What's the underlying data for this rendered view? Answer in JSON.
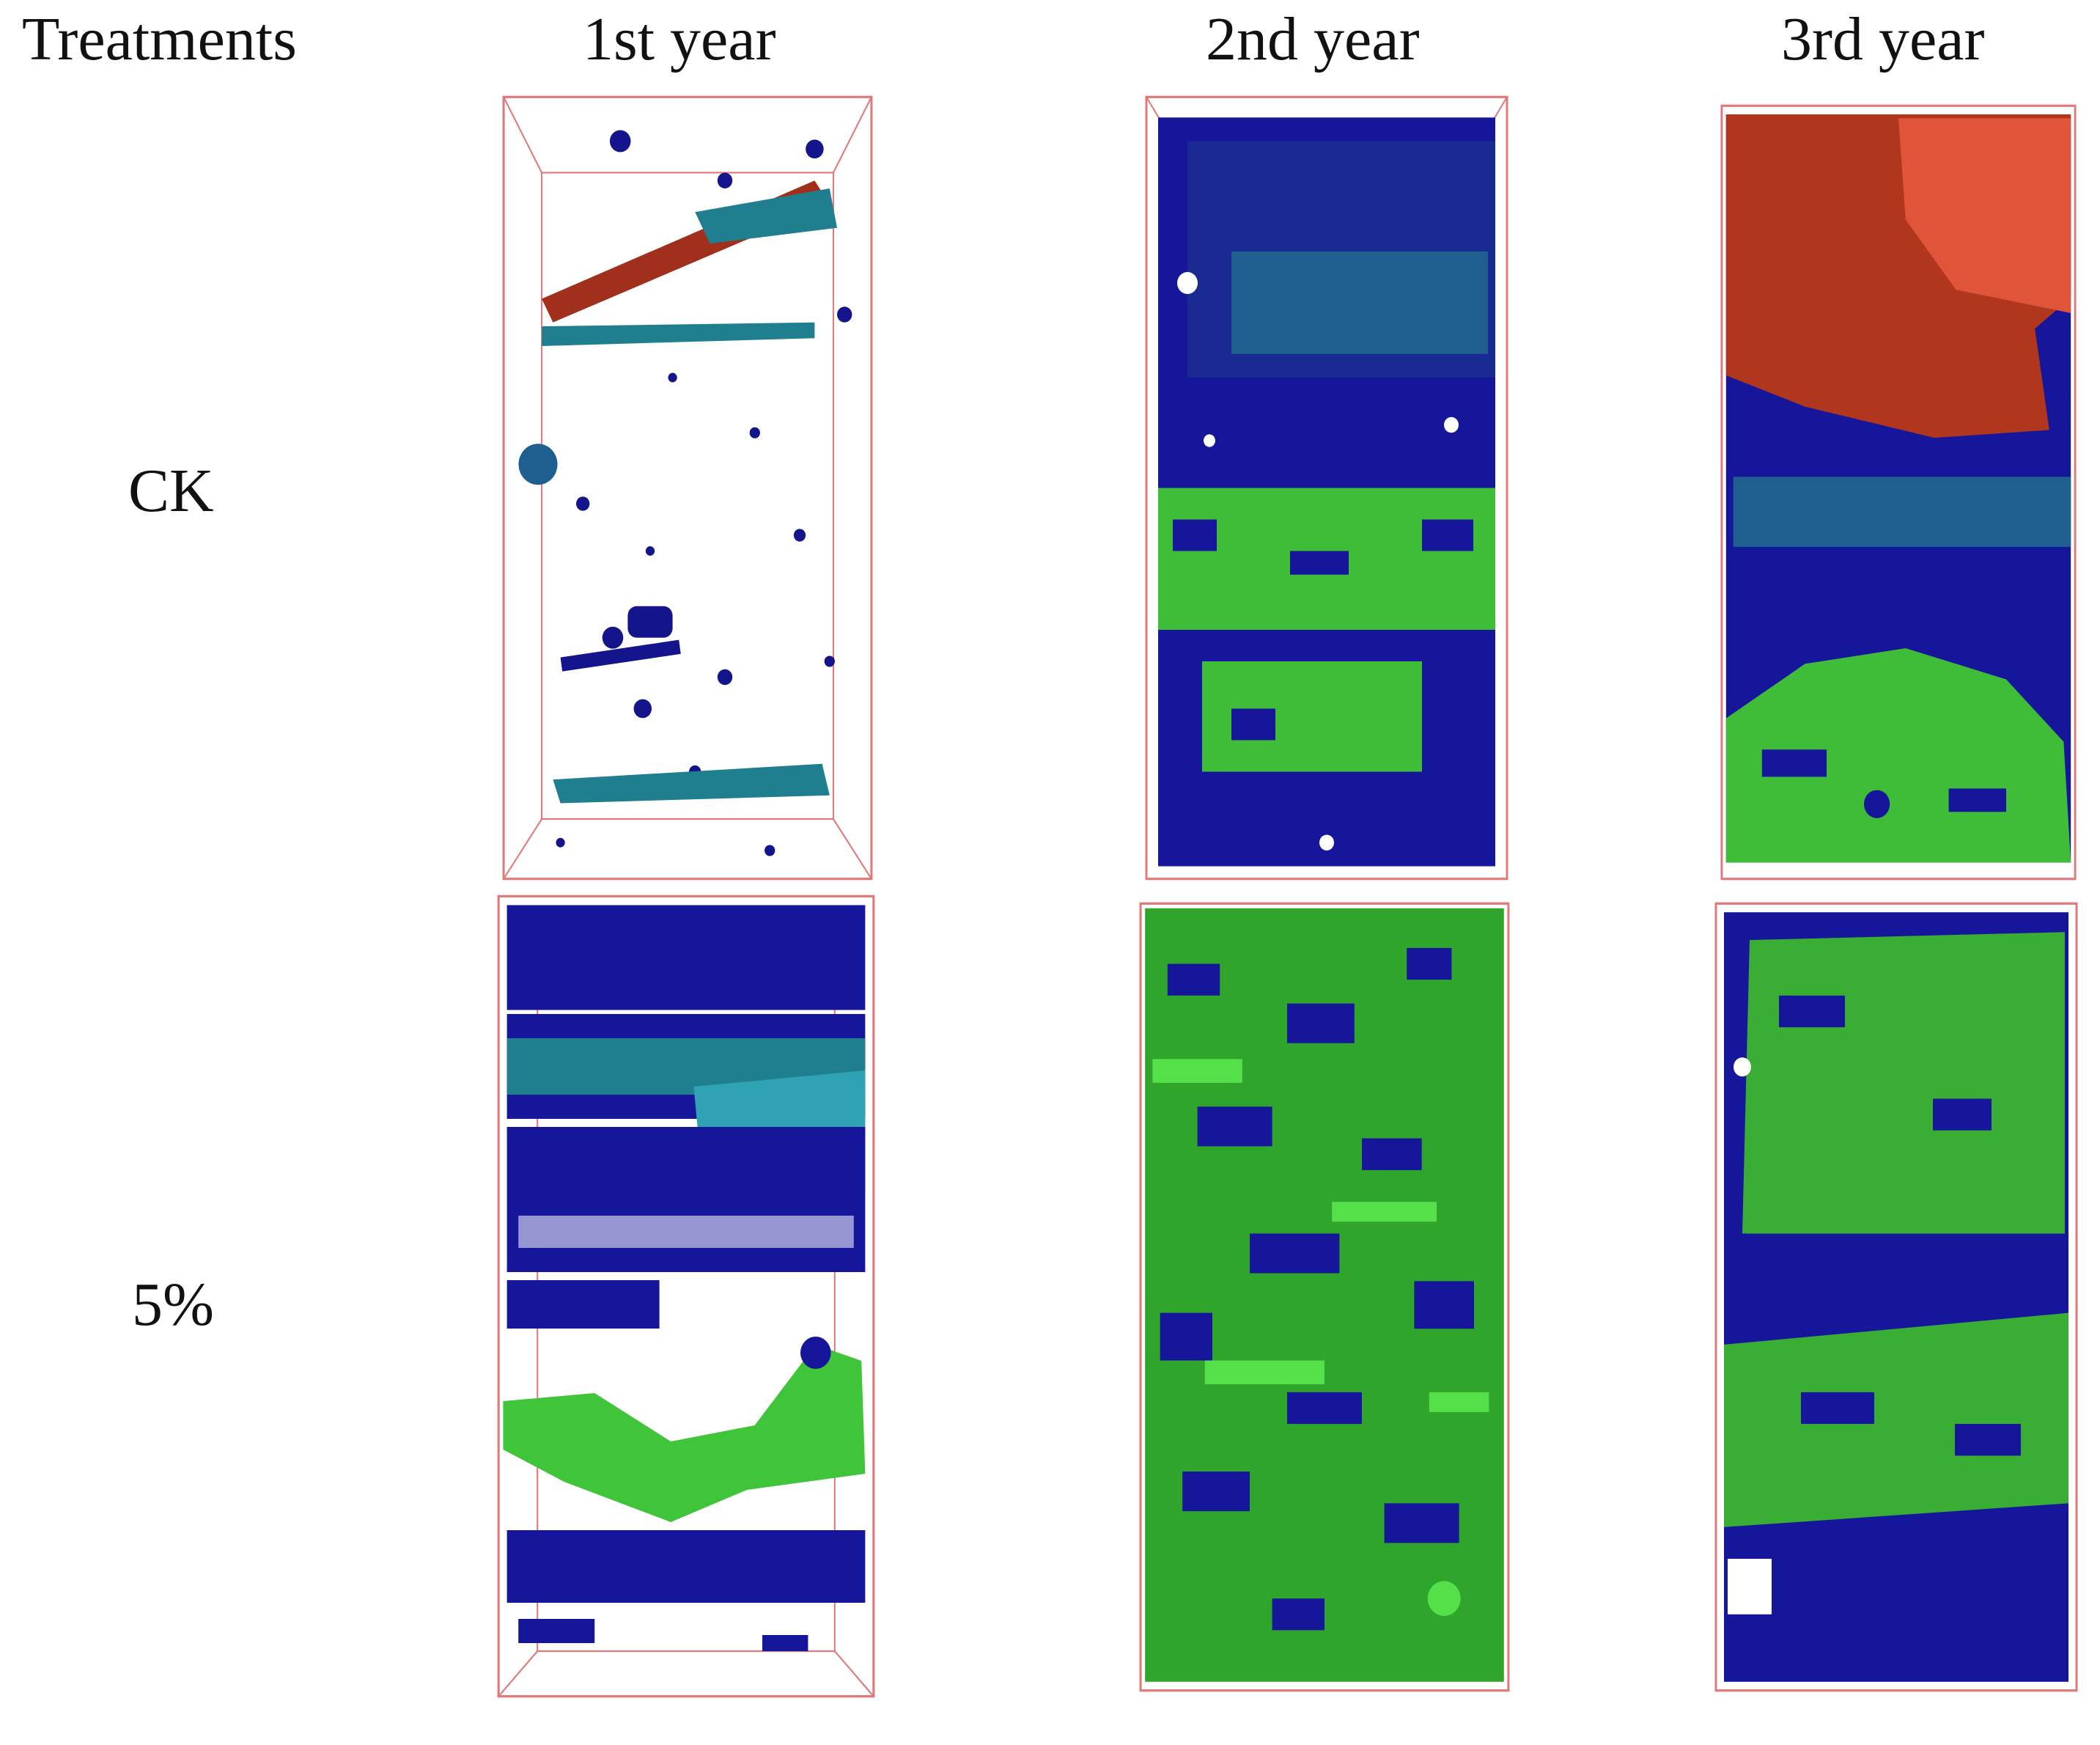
{
  "header": {
    "treatments_label": "Treatments",
    "columns": [
      "1st year",
      "2nd year",
      "3rd year"
    ]
  },
  "rows": [
    {
      "label": "CK"
    },
    {
      "label": "5%"
    }
  ],
  "colors": {
    "pore_blue": "#14148c",
    "pore_teal": "#1f7f8f",
    "pore_red": "#a0301c",
    "pore_green": "#3fc43a",
    "frame_line": "#e07a7a",
    "background": "#ffffff"
  }
}
